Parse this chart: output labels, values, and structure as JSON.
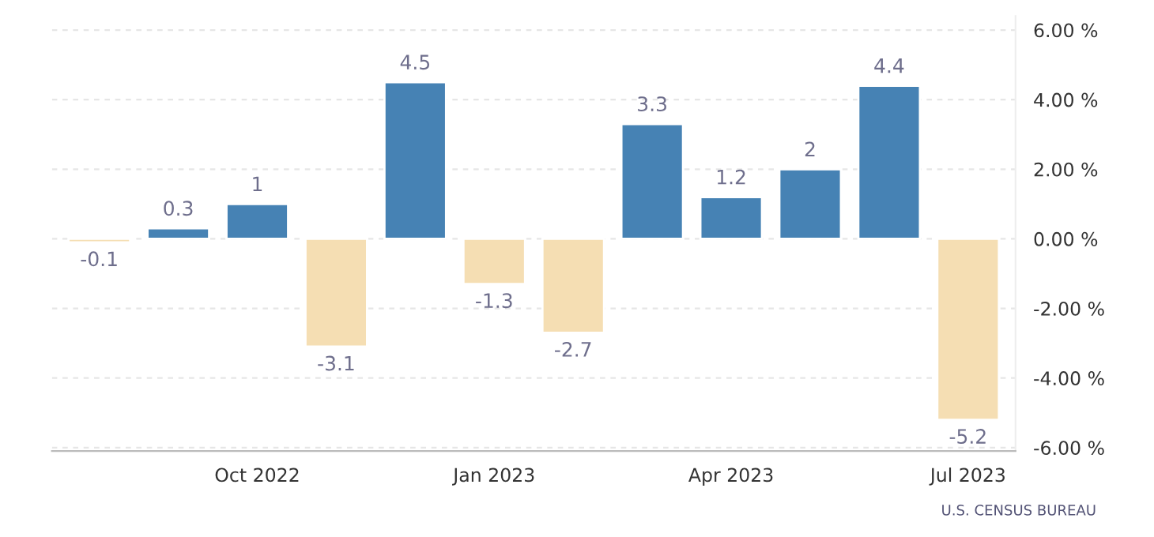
{
  "chart_data": {
    "type": "bar",
    "categories": [
      null,
      null,
      "Oct 2022",
      null,
      null,
      "Jan 2023",
      null,
      null,
      "Apr 2023",
      null,
      null,
      "Jul 2023"
    ],
    "values": [
      -0.1,
      0.3,
      1,
      -3.1,
      4.5,
      -1.3,
      -2.7,
      3.3,
      1.2,
      2,
      4.4,
      -5.2
    ],
    "colors": [
      "#f5deb3",
      "#4682b4",
      "#4682b4",
      "#f5deb3",
      "#4682b4",
      "#f5deb3",
      "#f5deb3",
      "#4682b4",
      "#4682b4",
      "#4682b4",
      "#4682b4",
      "#f5deb3"
    ],
    "data_labels": true,
    "ylim": [
      -6.1,
      6.4
    ],
    "yticks": [
      {
        "value": -6,
        "label": "-6.00 %"
      },
      {
        "value": -4,
        "label": "-4.00 %"
      },
      {
        "value": -2,
        "label": "-2.00 %"
      },
      {
        "value": 0,
        "label": "0.00 %"
      },
      {
        "value": 2,
        "label": "2.00 %"
      },
      {
        "value": 4,
        "label": "4.00 %"
      },
      {
        "value": 6,
        "label": "6.00 %"
      }
    ],
    "grid": "y",
    "annotations": [
      "U.S. CENSUS BUREAU"
    ]
  }
}
